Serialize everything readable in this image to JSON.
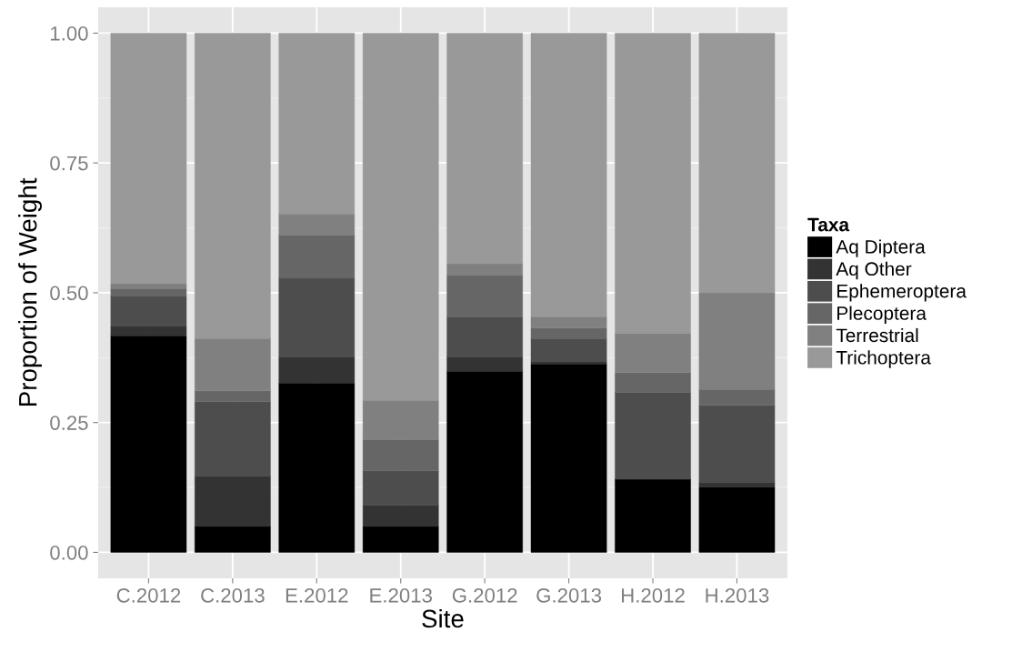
{
  "chart_data": {
    "type": "bar",
    "stacked": true,
    "xlabel": "Site",
    "ylabel": "Proportion of Weight",
    "legend_title": "Taxa",
    "legend": "right",
    "grid": true,
    "categories": [
      "C.2012",
      "C.2013",
      "E.2012",
      "E.2013",
      "G.2012",
      "G.2013",
      "H.2012",
      "H.2013"
    ],
    "ylim": [
      -0.05,
      1.05
    ],
    "yticks": [
      {
        "value": 0,
        "label": "0.00"
      },
      {
        "value": 0.25,
        "label": "0.25"
      },
      {
        "value": 0.5,
        "label": "0.50"
      },
      {
        "value": 0.75,
        "label": "0.75"
      },
      {
        "value": 1,
        "label": "1.00"
      }
    ],
    "series": [
      {
        "name": "Aq Diptera",
        "color": "#000000",
        "values": [
          0.417,
          0.05,
          0.326,
          0.05,
          0.349,
          0.363,
          0.141,
          0.126
        ]
      },
      {
        "name": "Aq Other",
        "color": "#333333",
        "values": [
          0.018,
          0.097,
          0.051,
          0.041,
          0.028,
          0.005,
          0.0,
          0.008
        ]
      },
      {
        "name": "Ephemeroptera",
        "color": "#4d4d4d",
        "values": [
          0.058,
          0.143,
          0.151,
          0.066,
          0.077,
          0.044,
          0.167,
          0.149
        ]
      },
      {
        "name": "Plecoptera",
        "color": "#666666",
        "values": [
          0.015,
          0.021,
          0.083,
          0.06,
          0.079,
          0.02,
          0.038,
          0.031
        ]
      },
      {
        "name": "Terrestrial",
        "color": "#808080",
        "values": [
          0.01,
          0.101,
          0.041,
          0.076,
          0.023,
          0.022,
          0.076,
          0.186
        ]
      },
      {
        "name": "Trichoptera",
        "color": "#999999",
        "values": [
          0.482,
          0.588,
          0.348,
          0.707,
          0.444,
          0.546,
          0.578,
          0.5
        ]
      }
    ]
  }
}
